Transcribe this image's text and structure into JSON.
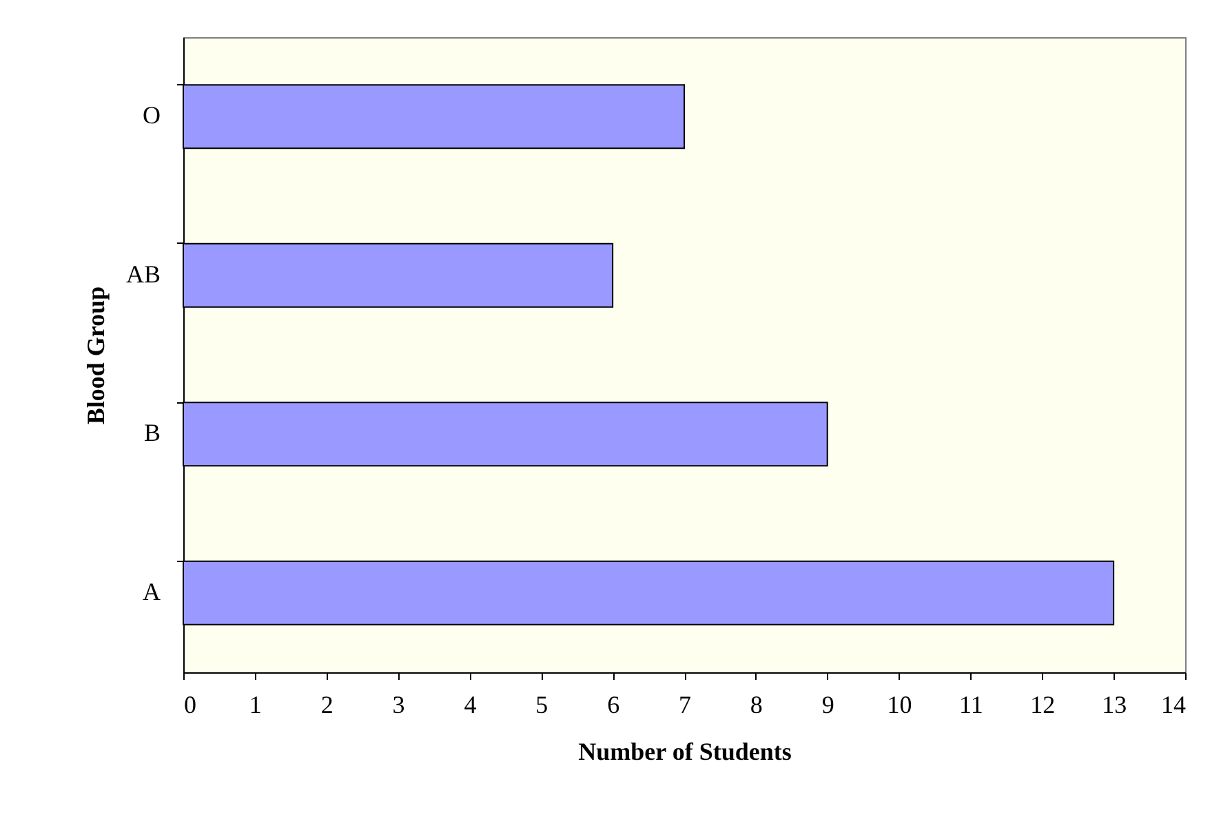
{
  "chart_data": {
    "type": "bar",
    "orientation": "horizontal",
    "xlabel": "Number of Students",
    "ylabel": "Blood Group",
    "categories": [
      "O",
      "AB",
      "B",
      "A"
    ],
    "values": [
      7,
      6,
      9,
      13
    ],
    "color": "#9999ff",
    "xlim": [
      0,
      14
    ],
    "xticks": [
      0,
      1,
      2,
      3,
      4,
      5,
      6,
      7,
      8,
      9,
      10,
      11,
      12,
      13,
      14
    ],
    "grid": false
  }
}
